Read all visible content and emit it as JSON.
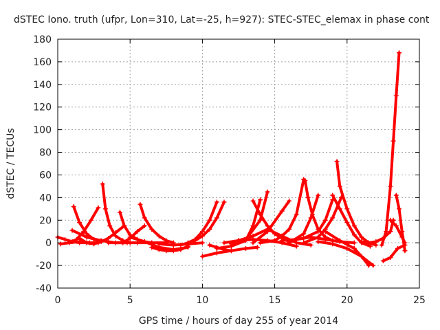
{
  "chart_data": {
    "type": "line",
    "title": "dSTEC Iono. truth (ufpr, Lon=310, Lat=-25, h=927): STEC-STEC_elemax in phase cont",
    "xlabel": "GPS time / hours of day 255 of year 2014",
    "ylabel": "dSTEC  / TECUs",
    "xlim": [
      0,
      25
    ],
    "ylim": [
      -40,
      180
    ],
    "xticks": [
      0,
      5,
      10,
      15,
      20,
      25
    ],
    "yticks": [
      -40,
      -20,
      0,
      20,
      40,
      60,
      80,
      100,
      120,
      140,
      160,
      180
    ],
    "grid": true,
    "legend": "none",
    "marker": "plus",
    "color": "#ff0000",
    "series": [
      {
        "x": [
          0.0,
          0.5,
          1.0,
          1.5,
          2.0
        ],
        "y": [
          5,
          3,
          1,
          0,
          0
        ]
      },
      {
        "x": [
          0.2,
          0.8,
          1.5,
          2.2,
          2.8
        ],
        "y": [
          -1,
          0,
          1,
          0,
          0
        ]
      },
      {
        "x": [
          1.1,
          1.5,
          2.0,
          2.5,
          3.0
        ],
        "y": [
          32,
          18,
          8,
          3,
          1
        ]
      },
      {
        "x": [
          0.8,
          1.3,
          1.8,
          2.3,
          2.8
        ],
        "y": [
          0,
          3,
          10,
          20,
          31
        ]
      },
      {
        "x": [
          1.0,
          2.0,
          3.0,
          4.0,
          4.8
        ],
        "y": [
          11,
          5,
          2,
          0,
          0
        ]
      },
      {
        "x": [
          3.1,
          3.3,
          3.6,
          4.0,
          4.5,
          5.0
        ],
        "y": [
          52,
          30,
          15,
          6,
          2,
          0
        ]
      },
      {
        "x": [
          1.5,
          2.0,
          2.5,
          3.0,
          3.5,
          4.0,
          4.6
        ],
        "y": [
          4,
          0,
          -1,
          1,
          4,
          9,
          15
        ]
      },
      {
        "x": [
          4.3,
          4.6,
          5.0,
          5.5,
          6.0,
          6.5
        ],
        "y": [
          27,
          15,
          7,
          3,
          1,
          0
        ]
      },
      {
        "x": [
          3.5,
          4.5,
          5.5,
          6.5,
          7.5
        ],
        "y": [
          0,
          0,
          0,
          0,
          0
        ]
      },
      {
        "x": [
          4.5,
          5.0,
          5.5,
          6.0
        ],
        "y": [
          0,
          4,
          10,
          15
        ]
      },
      {
        "x": [
          5.7,
          6.0,
          6.5,
          7.0,
          7.5,
          8.0
        ],
        "y": [
          34,
          22,
          12,
          6,
          2,
          0
        ]
      },
      {
        "x": [
          5.0,
          6.0,
          7.0,
          8.0,
          9.0
        ],
        "y": [
          5,
          1,
          -4,
          -6,
          -4
        ]
      },
      {
        "x": [
          6.5,
          7.0,
          7.5,
          8.0,
          8.5,
          9.0
        ],
        "y": [
          -4,
          -6,
          -7,
          -7,
          -6,
          -3
        ]
      },
      {
        "x": [
          7.0,
          8.0,
          9.0,
          10.0
        ],
        "y": [
          -1,
          -2,
          -1,
          0
        ]
      },
      {
        "x": [
          8.5,
          9.0,
          9.5,
          10.0,
          10.5,
          11.0
        ],
        "y": [
          -2,
          0,
          3,
          10,
          20,
          36
        ]
      },
      {
        "x": [
          9.0,
          9.5,
          10.0,
          10.5,
          11.0,
          11.5
        ],
        "y": [
          -1,
          2,
          6,
          12,
          22,
          36
        ]
      },
      {
        "x": [
          10.0,
          11.0,
          12.0,
          13.0,
          13.8
        ],
        "y": [
          -12,
          -9,
          -7,
          -5,
          -4
        ]
      },
      {
        "x": [
          10.5,
          11.0,
          11.5,
          12.0
        ],
        "y": [
          -2,
          -4,
          -6,
          -7
        ]
      },
      {
        "x": [
          11.0,
          12.0,
          13.0,
          13.5,
          14.0
        ],
        "y": [
          -5,
          -3,
          2,
          15,
          38
        ]
      },
      {
        "x": [
          12.0,
          13.0,
          14.0,
          14.5
        ],
        "y": [
          -1,
          3,
          20,
          45
        ]
      },
      {
        "x": [
          11.5,
          12.5,
          13.5,
          14.5,
          15.5,
          16.5
        ],
        "y": [
          0,
          2,
          3,
          2,
          0,
          -3
        ]
      },
      {
        "x": [
          12.5,
          13.5,
          14.5,
          15.5,
          16.5,
          17.5
        ],
        "y": [
          2,
          6,
          12,
          6,
          0,
          -2
        ]
      },
      {
        "x": [
          13.5,
          14.0,
          14.5,
          15.0,
          15.5,
          16.0
        ],
        "y": [
          37,
          25,
          15,
          8,
          4,
          1
        ]
      },
      {
        "x": [
          13.5,
          14.5,
          15.5,
          16.0
        ],
        "y": [
          0,
          10,
          28,
          37
        ]
      },
      {
        "x": [
          14.0,
          15.0,
          15.5,
          16.0,
          16.5,
          17.0
        ],
        "y": [
          0,
          2,
          6,
          12,
          25,
          56
        ]
      },
      {
        "x": [
          15.5,
          16.5,
          17.5,
          18.5,
          19.5,
          20.5
        ],
        "y": [
          2,
          3,
          5,
          3,
          1,
          0
        ]
      },
      {
        "x": [
          16.0,
          17.0,
          18.0,
          18.5,
          19.0
        ],
        "y": [
          2,
          4,
          10,
          20,
          38
        ]
      },
      {
        "x": [
          17.1,
          17.3,
          17.6,
          18.0,
          18.5,
          19.0
        ],
        "y": [
          55,
          40,
          25,
          12,
          5,
          2
        ]
      },
      {
        "x": [
          16.0,
          17.0,
          17.5,
          18.0
        ],
        "y": [
          0,
          8,
          22,
          42
        ]
      },
      {
        "x": [
          17.0,
          18.0,
          18.5,
          19.0,
          19.6
        ],
        "y": [
          0,
          5,
          12,
          22,
          40
        ]
      },
      {
        "x": [
          19.3,
          19.5,
          20.0,
          20.5,
          21.0,
          21.5,
          22.0
        ],
        "y": [
          72,
          50,
          30,
          15,
          5,
          0,
          -2
        ]
      },
      {
        "x": [
          19.0,
          19.5,
          20.0,
          20.5,
          21.0,
          21.6
        ],
        "y": [
          42,
          30,
          18,
          7,
          0,
          -3
        ]
      },
      {
        "x": [
          18.5,
          19.5,
          20.5,
          21.0,
          21.5
        ],
        "y": [
          10,
          2,
          -5,
          -12,
          -20
        ]
      },
      {
        "x": [
          18.0,
          19.0,
          20.0,
          21.0,
          21.8
        ],
        "y": [
          1,
          -1,
          -5,
          -12,
          -20
        ]
      },
      {
        "x": [
          21.0,
          21.5,
          22.0,
          22.5,
          23.0,
          23.2
        ],
        "y": [
          1,
          0,
          1,
          4,
          10,
          20
        ]
      },
      {
        "x": [
          22.4,
          22.7,
          23.0,
          23.2,
          23.4,
          23.6
        ],
        "y": [
          -2,
          10,
          50,
          90,
          130,
          168
        ]
      },
      {
        "x": [
          22.5,
          23.0,
          23.5,
          24.0
        ],
        "y": [
          -16,
          -13,
          -5,
          -2
        ]
      },
      {
        "x": [
          23.4,
          23.6,
          23.8,
          24.0
        ],
        "y": [
          42,
          30,
          10,
          -7
        ]
      },
      {
        "x": [
          23.0,
          23.4,
          23.8,
          24.0
        ],
        "y": [
          20,
          15,
          5,
          0
        ]
      }
    ]
  }
}
